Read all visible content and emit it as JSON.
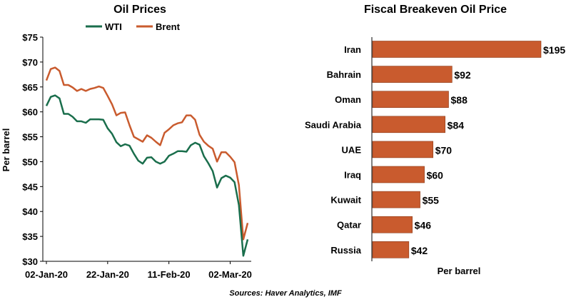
{
  "source": "Sources: Haver Analytics, IMF",
  "chart_data": [
    {
      "type": "line",
      "title": "Oil Prices",
      "ylabel": "Per barrel",
      "ylim": [
        30,
        75
      ],
      "yticks": [
        "$75",
        "$70",
        "$65",
        "$60",
        "$55",
        "$50",
        "$45",
        "$40",
        "$35",
        "$30"
      ],
      "ytick_values": [
        75,
        70,
        65,
        60,
        55,
        50,
        45,
        40,
        35,
        30
      ],
      "xticks": [
        {
          "label": "02-Jan-20",
          "index": 0
        },
        {
          "label": "22-Jan-20",
          "index": 14
        },
        {
          "label": "11-Feb-20",
          "index": 28
        },
        {
          "label": "02-Mar-20",
          "index": 42
        }
      ],
      "legend": "top",
      "series": [
        {
          "name": "WTI",
          "color": "#1a6e4c",
          "values": [
            61.2,
            63.0,
            63.3,
            62.7,
            59.6,
            59.6,
            59.0,
            58.1,
            58.1,
            57.8,
            58.5,
            58.5,
            58.5,
            58.4,
            56.7,
            55.6,
            53.9,
            53.1,
            53.5,
            53.2,
            51.6,
            50.2,
            49.6,
            50.8,
            50.9,
            50.0,
            49.6,
            50.0,
            51.2,
            51.6,
            52.1,
            52.1,
            52.0,
            53.3,
            53.8,
            53.4,
            51.1,
            49.7,
            48.1,
            44.8,
            46.7,
            47.2,
            46.8,
            45.9,
            41.3,
            31.1,
            34.4
          ]
        },
        {
          "name": "Brent",
          "color": "#c95b2e",
          "values": [
            66.3,
            68.6,
            68.9,
            68.2,
            65.4,
            65.4,
            64.9,
            64.2,
            64.6,
            64.2,
            64.6,
            64.8,
            65.1,
            64.8,
            63.2,
            61.5,
            59.3,
            59.8,
            59.9,
            57.3,
            55.0,
            54.5,
            54.0,
            55.3,
            54.8,
            54.0,
            53.3,
            55.8,
            56.5,
            57.3,
            57.7,
            57.9,
            59.3,
            59.3,
            58.4,
            55.4,
            54.0,
            53.2,
            52.6,
            50.0,
            51.9,
            51.9,
            51.0,
            49.9,
            45.3,
            34.4,
            37.7
          ]
        }
      ]
    },
    {
      "type": "bar",
      "title": "Fiscal Breakeven Oil Price",
      "xlabel": "Per barrel",
      "color": "#c95b2e",
      "max": 195,
      "categories": [
        "Iran",
        "Bahrain",
        "Oman",
        "Saudi Arabia",
        "UAE",
        "Iraq",
        "Kuwait",
        "Qatar",
        "Russia"
      ],
      "values": [
        195,
        92,
        88,
        84,
        70,
        60,
        55,
        46,
        42
      ],
      "labels": [
        "$195",
        "$92",
        "$88",
        "$84",
        "$70",
        "$60",
        "$55",
        "$46",
        "$42"
      ]
    }
  ]
}
